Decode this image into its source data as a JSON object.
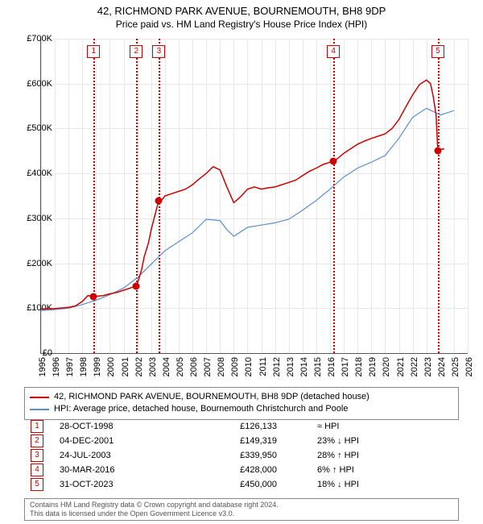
{
  "title": "42, RICHMOND PARK AVENUE, BOURNEMOUTH, BH8 9DP",
  "subtitle": "Price paid vs. HM Land Registry's House Price Index (HPI)",
  "chart": {
    "type": "line",
    "xlim": [
      1995,
      2026
    ],
    "ylim": [
      0,
      700000
    ],
    "ytick_step": 100000,
    "yticks": [
      "£0",
      "£100K",
      "£200K",
      "£300K",
      "£400K",
      "£500K",
      "£600K",
      "£700K"
    ],
    "xticks": [
      1995,
      1996,
      1997,
      1998,
      1999,
      2000,
      2001,
      2002,
      2003,
      2004,
      2005,
      2006,
      2007,
      2008,
      2009,
      2010,
      2011,
      2012,
      2013,
      2014,
      2015,
      2016,
      2017,
      2018,
      2019,
      2020,
      2021,
      2022,
      2023,
      2024,
      2025,
      2026
    ],
    "grid_color": "#e8e8e8",
    "background": "#ffffff",
    "series": {
      "property": {
        "label": "42, RICHMOND PARK AVENUE, BOURNEMOUTH, BH8 9DP (detached house)",
        "color": "#cc0000",
        "width": 1.5,
        "points": [
          [
            1995.0,
            98000
          ],
          [
            1996.0,
            99000
          ],
          [
            1997.0,
            102000
          ],
          [
            1997.5,
            105000
          ],
          [
            1998.0,
            115000
          ],
          [
            1998.4,
            128000
          ],
          [
            1998.8,
            126133
          ],
          [
            1999.0,
            126500
          ],
          [
            1999.5,
            128000
          ],
          [
            2000.0,
            132000
          ],
          [
            2000.5,
            135000
          ],
          [
            2001.0,
            140000
          ],
          [
            2001.5,
            145000
          ],
          [
            2001.9,
            149319
          ],
          [
            2002.0,
            155000
          ],
          [
            2002.3,
            185000
          ],
          [
            2002.5,
            215000
          ],
          [
            2002.8,
            245000
          ],
          [
            2003.0,
            275000
          ],
          [
            2003.3,
            310000
          ],
          [
            2003.55,
            339950
          ],
          [
            2003.8,
            342000
          ],
          [
            2004.0,
            350000
          ],
          [
            2004.5,
            355000
          ],
          [
            2005.0,
            360000
          ],
          [
            2005.5,
            365000
          ],
          [
            2006.0,
            375000
          ],
          [
            2006.5,
            388000
          ],
          [
            2007.0,
            400000
          ],
          [
            2007.5,
            415000
          ],
          [
            2008.0,
            408000
          ],
          [
            2008.5,
            370000
          ],
          [
            2009.0,
            335000
          ],
          [
            2009.5,
            348000
          ],
          [
            2010.0,
            365000
          ],
          [
            2010.5,
            370000
          ],
          [
            2011.0,
            365000
          ],
          [
            2011.5,
            368000
          ],
          [
            2012.0,
            370000
          ],
          [
            2012.5,
            375000
          ],
          [
            2013.0,
            380000
          ],
          [
            2013.5,
            385000
          ],
          [
            2014.0,
            395000
          ],
          [
            2014.5,
            405000
          ],
          [
            2015.0,
            412000
          ],
          [
            2015.5,
            420000
          ],
          [
            2016.0,
            425000
          ],
          [
            2016.24,
            428000
          ],
          [
            2016.5,
            432000
          ],
          [
            2017.0,
            445000
          ],
          [
            2017.5,
            455000
          ],
          [
            2018.0,
            465000
          ],
          [
            2018.5,
            472000
          ],
          [
            2019.0,
            478000
          ],
          [
            2019.5,
            483000
          ],
          [
            2020.0,
            488000
          ],
          [
            2020.5,
            500000
          ],
          [
            2021.0,
            520000
          ],
          [
            2021.5,
            548000
          ],
          [
            2022.0,
            575000
          ],
          [
            2022.5,
            598000
          ],
          [
            2023.0,
            608000
          ],
          [
            2023.3,
            600000
          ],
          [
            2023.5,
            570000
          ],
          [
            2023.7,
            530000
          ],
          [
            2023.83,
            450000
          ],
          [
            2024.0,
            453000
          ],
          [
            2024.3,
            455000
          ]
        ]
      },
      "hpi": {
        "label": "HPI: Average price, detached house, Bournemouth Christchurch and Poole",
        "color": "#5b8fcc",
        "width": 1.2,
        "points": [
          [
            1995.0,
            95000
          ],
          [
            1996.0,
            97000
          ],
          [
            1997.0,
            100000
          ],
          [
            1998.0,
            108000
          ],
          [
            1999.0,
            118000
          ],
          [
            2000.0,
            130000
          ],
          [
            2001.0,
            145000
          ],
          [
            2002.0,
            168000
          ],
          [
            2003.0,
            198000
          ],
          [
            2004.0,
            228000
          ],
          [
            2005.0,
            248000
          ],
          [
            2006.0,
            268000
          ],
          [
            2007.0,
            298000
          ],
          [
            2008.0,
            295000
          ],
          [
            2008.5,
            275000
          ],
          [
            2009.0,
            260000
          ],
          [
            2010.0,
            280000
          ],
          [
            2011.0,
            285000
          ],
          [
            2012.0,
            290000
          ],
          [
            2013.0,
            298000
          ],
          [
            2014.0,
            318000
          ],
          [
            2015.0,
            340000
          ],
          [
            2016.0,
            365000
          ],
          [
            2017.0,
            392000
          ],
          [
            2018.0,
            412000
          ],
          [
            2019.0,
            425000
          ],
          [
            2020.0,
            440000
          ],
          [
            2021.0,
            478000
          ],
          [
            2022.0,
            525000
          ],
          [
            2023.0,
            545000
          ],
          [
            2023.5,
            538000
          ],
          [
            2024.0,
            530000
          ],
          [
            2024.5,
            535000
          ],
          [
            2025.0,
            540000
          ]
        ]
      }
    },
    "events": [
      {
        "n": "1",
        "year": 1998.82,
        "price": 126133,
        "date": "28-OCT-1998",
        "price_str": "£126,133",
        "rel": "≈ HPI",
        "color": "#cc0000"
      },
      {
        "n": "2",
        "year": 2001.92,
        "price": 149319,
        "date": "04-DEC-2001",
        "price_str": "£149,319",
        "rel": "23% ↓ HPI",
        "color": "#cc0000"
      },
      {
        "n": "3",
        "year": 2003.56,
        "price": 339950,
        "date": "24-JUL-2003",
        "price_str": "£339,950",
        "rel": "28% ↑ HPI",
        "color": "#cc0000"
      },
      {
        "n": "4",
        "year": 2016.24,
        "price": 428000,
        "date": "30-MAR-2016",
        "price_str": "£428,000",
        "rel": "6% ↑ HPI",
        "color": "#cc0000"
      },
      {
        "n": "5",
        "year": 2023.83,
        "price": 450000,
        "date": "31-OCT-2023",
        "price_str": "£450,000",
        "rel": "18% ↓ HPI",
        "color": "#cc0000"
      }
    ]
  },
  "footer": {
    "line1": "Contains HM Land Registry data © Crown copyright and database right 2024.",
    "line2": "This data is licensed under the Open Government Licence v3.0."
  }
}
